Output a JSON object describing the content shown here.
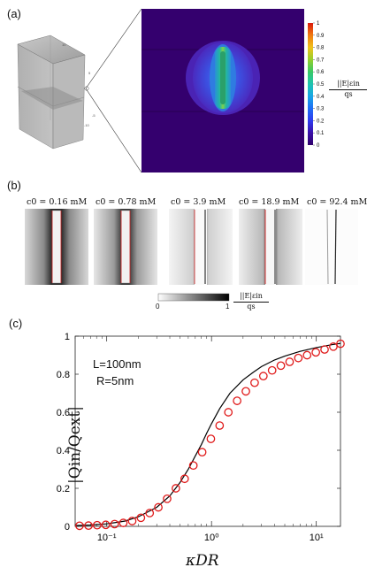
{
  "panels": {
    "a": {
      "label": "(a)"
    },
    "b": {
      "label": "(b)"
    },
    "c": {
      "label": "(c)"
    }
  },
  "panel_a": {
    "colorbar": {
      "ticks": [
        "1",
        "0.9",
        "0.8",
        "0.7",
        "0.6",
        "0.5",
        "0.4",
        "0.3",
        "0.2",
        "0.1",
        "0"
      ],
      "label_top": "||E|εin",
      "label_bottom": "qs"
    },
    "colors": {
      "background": "#34006e",
      "inner": "#3b58e8",
      "core": "#26c07a",
      "center": "#8fd844"
    }
  },
  "panel_b": {
    "maps": [
      {
        "title": "c0 = 0.16 mM"
      },
      {
        "title": "c0 = 0.78 mM"
      },
      {
        "title": "c0 = 3.9 mM"
      },
      {
        "title": "c0 = 18.9 mM"
      },
      {
        "title": "c0 = 92.4 mM"
      }
    ],
    "colorbar": {
      "min": "0",
      "max": "1",
      "label_top": "||E|εin",
      "label_bottom": "qs"
    },
    "colors": {
      "rod_edge": "#cc1f1f"
    }
  },
  "chart_data": {
    "type": "line",
    "xlabel": "κDR",
    "ylabel": "|Qin/Qext|",
    "xscale": "log",
    "xlim": [
      0.05,
      17
    ],
    "ylim": [
      0,
      1
    ],
    "x_ticks": [
      "10⁻¹",
      "10⁰",
      "10¹"
    ],
    "y_ticks": [
      "0",
      "0.2",
      "0.4",
      "0.6",
      "0.8",
      "1"
    ],
    "annotations": [
      "L=100nm",
      "R=5nm"
    ],
    "series": [
      {
        "style": "line",
        "color": "#000000",
        "x": [
          0.05,
          0.07,
          0.1,
          0.15,
          0.2,
          0.3,
          0.4,
          0.5,
          0.6,
          0.7,
          0.8,
          0.9,
          1.0,
          1.2,
          1.5,
          2.0,
          2.5,
          3.0,
          4.0,
          5.0,
          7.0,
          10.0,
          14.0,
          17.0
        ],
        "y": [
          0.004,
          0.007,
          0.013,
          0.028,
          0.05,
          0.1,
          0.16,
          0.23,
          0.3,
          0.37,
          0.43,
          0.49,
          0.54,
          0.62,
          0.7,
          0.77,
          0.81,
          0.84,
          0.875,
          0.895,
          0.92,
          0.94,
          0.955,
          0.962
        ]
      },
      {
        "style": "markers",
        "color": "#e01a1a",
        "x": [
          0.055,
          0.067,
          0.081,
          0.098,
          0.119,
          0.144,
          0.175,
          0.212,
          0.257,
          0.311,
          0.377,
          0.457,
          0.554,
          0.671,
          0.814,
          0.986,
          1.195,
          1.448,
          1.755,
          2.127,
          2.578,
          3.124,
          3.786,
          4.588,
          5.56,
          6.738,
          8.166,
          9.896,
          11.99,
          14.54,
          17.0
        ],
        "y": [
          0.003,
          0.004,
          0.006,
          0.008,
          0.012,
          0.018,
          0.028,
          0.045,
          0.07,
          0.1,
          0.145,
          0.2,
          0.25,
          0.32,
          0.39,
          0.46,
          0.53,
          0.6,
          0.66,
          0.71,
          0.755,
          0.79,
          0.82,
          0.845,
          0.865,
          0.885,
          0.9,
          0.915,
          0.93,
          0.945,
          0.96
        ]
      }
    ]
  }
}
